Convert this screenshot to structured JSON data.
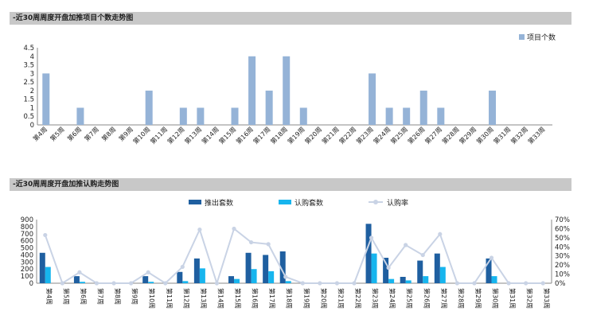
{
  "sections": {
    "title1": "-近30周周度开盘加推项目个数走势图",
    "title2": "-近30周周度开盘加推认购走势图"
  },
  "colors": {
    "light_blue": "#95b3d7",
    "dark_blue": "#1f5fa0",
    "cyan": "#17b5ee",
    "rate_line": "#c9d3e5",
    "title_bg": "#c8c8c8"
  },
  "chart_data": [
    {
      "type": "bar",
      "categories": [
        "第4周",
        "第5周",
        "第6周",
        "第7周",
        "第8周",
        "第9周",
        "第10周",
        "第11周",
        "第12周",
        "第13周",
        "第14周",
        "第15周",
        "第16周",
        "第17周",
        "第18周",
        "第19周",
        "第20周",
        "第21周",
        "第22周",
        "第23周",
        "第24周",
        "第25周",
        "第26周",
        "第27周",
        "第28周",
        "第29周",
        "第30周",
        "第31周",
        "第32周",
        "第33周"
      ],
      "series": [
        {
          "name": "项目个数",
          "values": [
            3,
            0,
            1,
            0,
            0,
            0,
            2,
            0,
            1,
            1,
            0,
            1,
            4,
            2,
            4,
            1,
            0,
            0,
            0,
            3,
            1,
            1,
            2,
            1,
            0,
            0,
            2,
            0,
            0,
            0
          ]
        }
      ],
      "ylim": [
        0,
        4.5
      ],
      "yticks": [
        "0",
        "0.5",
        "1",
        "1.5",
        "2",
        "2.5",
        "3",
        "3.5",
        "4",
        "4.5"
      ],
      "legend_position": "top-right",
      "grid": false
    },
    {
      "type": "bar",
      "categories": [
        "第4周",
        "第5周",
        "第6周",
        "第7周",
        "第8周",
        "第9周",
        "第10周",
        "第11周",
        "第12周",
        "第13周",
        "第14周",
        "第15周",
        "第16周",
        "第17周",
        "第18周",
        "第19周",
        "第20周",
        "第21周",
        "第22周",
        "第23周",
        "第24周",
        "第25周",
        "第26周",
        "第27周",
        "第28周",
        "第29周",
        "第30周",
        "第31周",
        "第32周",
        "第33周"
      ],
      "series": [
        {
          "name": "推出套数",
          "values": [
            430,
            0,
            100,
            0,
            0,
            0,
            100,
            0,
            160,
            350,
            0,
            100,
            430,
            400,
            450,
            0,
            0,
            0,
            0,
            840,
            360,
            90,
            320,
            420,
            0,
            0,
            350,
            0,
            0,
            0
          ]
        },
        {
          "name": "认购套数",
          "values": [
            230,
            0,
            20,
            0,
            0,
            0,
            20,
            0,
            30,
            210,
            0,
            60,
            200,
            170,
            30,
            0,
            0,
            0,
            0,
            420,
            60,
            40,
            100,
            230,
            0,
            0,
            100,
            0,
            0,
            0
          ]
        },
        {
          "name": "认购率",
          "axis": "right",
          "values": [
            53,
            0,
            12,
            0,
            0,
            0,
            12,
            0,
            18,
            59,
            0,
            60,
            45,
            43,
            7,
            0,
            0,
            0,
            0,
            50,
            17,
            42,
            31,
            54,
            0,
            0,
            28,
            0,
            0,
            0
          ]
        }
      ],
      "ylim": [
        0,
        900
      ],
      "yticks": [
        "0",
        "100",
        "200",
        "300",
        "400",
        "500",
        "600",
        "700",
        "800",
        "900"
      ],
      "y2lim": [
        0,
        70
      ],
      "y2ticks": [
        "0%",
        "10%",
        "20%",
        "30%",
        "40%",
        "50%",
        "60%",
        "70%"
      ],
      "legend_position": "top",
      "grid": false
    }
  ]
}
